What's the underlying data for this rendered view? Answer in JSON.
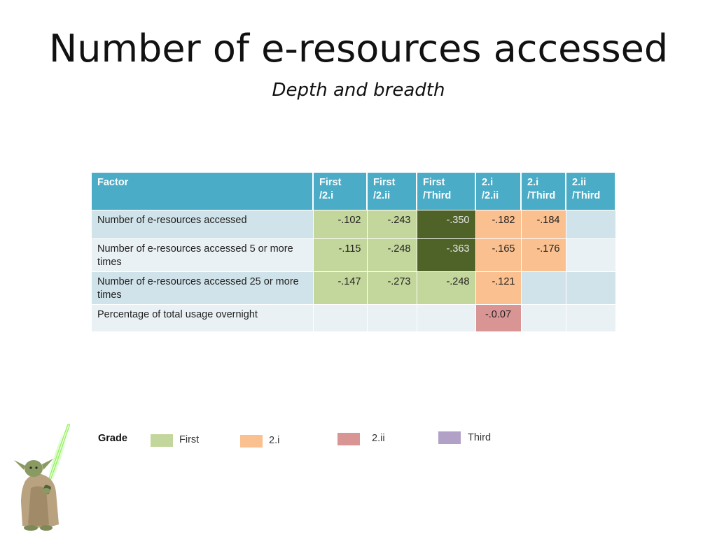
{
  "slide": {
    "title": "Number of e-resources accessed",
    "subtitle": "Depth and breadth"
  },
  "table": {
    "headers": [
      "Factor",
      "First\n/2.i",
      "First\n/2.ii",
      "First\n/Third",
      "2.i\n/2.ii",
      "2.i\n/Third",
      "2.ii\n/Third"
    ],
    "rows": [
      {
        "factor": "Number of e-resources accessed",
        "values": [
          "-.102",
          "-.243",
          "-.350",
          "-.182",
          "-.184",
          ""
        ],
        "shading": [
          "first",
          "first",
          "first-strong",
          "2i",
          "2i",
          "none"
        ]
      },
      {
        "factor": "Number of e-resources accessed 5 or more times",
        "values": [
          "-.115",
          "-.248",
          "-.363",
          "-.165",
          "-.176",
          ""
        ],
        "shading": [
          "first",
          "first",
          "first-strong",
          "2i",
          "2i",
          "none"
        ]
      },
      {
        "factor": "Number of e-resources accessed 25 or more times",
        "values": [
          "-.147",
          "-.273",
          "-.248",
          "-.121",
          "",
          ""
        ],
        "shading": [
          "first",
          "first",
          "first",
          "2i",
          "none",
          "none"
        ]
      },
      {
        "factor": "Percentage of total usage overnight",
        "values": [
          "",
          "",
          "",
          "-.0.07",
          "",
          ""
        ],
        "shading": [
          "none",
          "none",
          "none",
          "2ii",
          "none",
          "none"
        ]
      }
    ]
  },
  "legend": {
    "title": "Grade",
    "items": [
      {
        "label": "First",
        "color": "#c3d69b"
      },
      {
        "label": "2.i",
        "color": "#fac090"
      },
      {
        "label": "2.ii",
        "color": "#d99594"
      },
      {
        "label": "Third",
        "color": "#b2a1c7"
      }
    ]
  },
  "colors": {
    "header": "#4aacc6",
    "first": "#c3d69b",
    "first_strong": "#4f6228",
    "grade_2i": "#fac090",
    "grade_2ii": "#d99594",
    "third": "#b2a1c7",
    "saber": "#7fe84a"
  },
  "decoration": {
    "icon": "yoda-lightsaber-icon"
  }
}
